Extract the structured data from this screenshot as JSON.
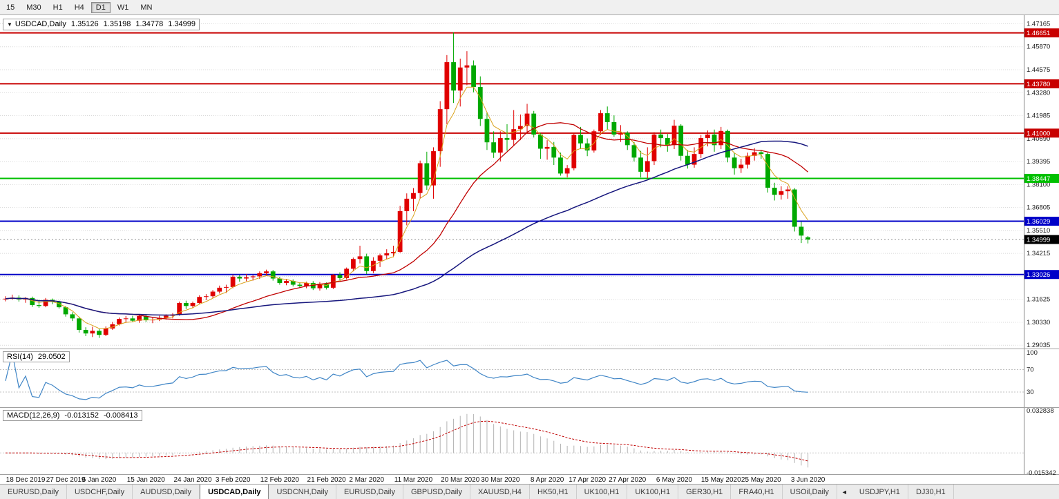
{
  "toolbar": {
    "periods": [
      {
        "label": "15",
        "active": false
      },
      {
        "label": "M30",
        "active": false
      },
      {
        "label": "H1",
        "active": false
      },
      {
        "label": "H4",
        "active": false
      },
      {
        "label": "D1",
        "active": true
      },
      {
        "label": "W1",
        "active": false
      },
      {
        "label": "MN",
        "active": false
      }
    ]
  },
  "chart_title": {
    "dropdown_icon": "▼",
    "symbol": "USDCAD,Daily",
    "open": "1.35126",
    "high": "1.35198",
    "low": "1.34778",
    "close": "1.34999"
  },
  "chart_data": {
    "type": "candlestick",
    "symbol": "USDCAD",
    "timeframe": "Daily",
    "up_color": "#e00000",
    "down_color": "#00a800",
    "price_axis": {
      "scale_top": 1.4765,
      "scale_bottom": 1.2885,
      "axis_values": [
        1.47165,
        1.4587,
        1.44575,
        1.4328,
        1.41985,
        1.4069,
        1.39395,
        1.381,
        1.36805,
        1.3551,
        1.34215,
        1.31625,
        1.3033,
        1.29035
      ],
      "grid_extra": [
        1.3292
      ]
    },
    "horizontal_lines": [
      {
        "value": 1.46651,
        "color": "#c80000",
        "width": 2
      },
      {
        "value": 1.4378,
        "color": "#c80000",
        "width": 2
      },
      {
        "value": 1.41,
        "color": "#c80000",
        "width": 2
      },
      {
        "value": 1.38447,
        "color": "#00c000",
        "width": 2
      },
      {
        "value": 1.36029,
        "color": "#0000c8",
        "width": 2
      },
      {
        "value": 1.33026,
        "color": "#0000c8",
        "width": 2
      }
    ],
    "current_price": 1.34999,
    "moving_averages": [
      {
        "type": "ema",
        "period": 5,
        "color": "#d9a018",
        "width": 1
      },
      {
        "type": "sma",
        "period": 20,
        "color": "#c00000",
        "width": 1.3
      },
      {
        "type": "sma",
        "period": 55,
        "color": "#16167d",
        "width": 1.5
      }
    ],
    "time_axis": [
      {
        "index": 3,
        "label": "18 Dec 2019"
      },
      {
        "index": 9,
        "label": "27 Dec 2019"
      },
      {
        "index": 14,
        "label": "6 Jan 2020"
      },
      {
        "index": 21,
        "label": "15 Jan 2020"
      },
      {
        "index": 28,
        "label": "24 Jan 2020"
      },
      {
        "index": 34,
        "label": "3 Feb 2020"
      },
      {
        "index": 41,
        "label": "12 Feb 2020"
      },
      {
        "index": 48,
        "label": "21 Feb 2020"
      },
      {
        "index": 54,
        "label": "2 Mar 2020"
      },
      {
        "index": 61,
        "label": "11 Mar 2020"
      },
      {
        "index": 68,
        "label": "20 Mar 2020"
      },
      {
        "index": 74,
        "label": "30 Mar 2020"
      },
      {
        "index": 81,
        "label": "8 Apr 2020"
      },
      {
        "index": 87,
        "label": "17 Apr 2020"
      },
      {
        "index": 93,
        "label": "27 Apr 2020"
      },
      {
        "index": 100,
        "label": "6 May 2020"
      },
      {
        "index": 107,
        "label": "15 May 2020"
      },
      {
        "index": 113,
        "label": "25 May 2020"
      },
      {
        "index": 120,
        "label": "3 Jun 2020"
      }
    ],
    "candles": [
      [
        1.3165,
        1.318,
        1.3151,
        1.3166
      ],
      [
        1.3166,
        1.3189,
        1.316,
        1.3172
      ],
      [
        1.3172,
        1.3185,
        1.315,
        1.3162
      ],
      [
        1.3162,
        1.3175,
        1.3143,
        1.317
      ],
      [
        1.317,
        1.3178,
        1.312,
        1.313
      ],
      [
        1.313,
        1.316,
        1.3115,
        1.3125
      ],
      [
        1.3125,
        1.317,
        1.3118,
        1.316
      ],
      [
        1.316,
        1.3167,
        1.3135,
        1.3148
      ],
      [
        1.3148,
        1.3155,
        1.311,
        1.3118
      ],
      [
        1.3118,
        1.3125,
        1.3065,
        1.3078
      ],
      [
        1.3078,
        1.309,
        1.304,
        1.3055
      ],
      [
        1.3055,
        1.3065,
        1.2975,
        1.299
      ],
      [
        1.299,
        1.3005,
        1.2955,
        1.297
      ],
      [
        1.297,
        1.3008,
        1.295,
        1.2985
      ],
      [
        1.2985,
        1.2995,
        1.2945,
        1.2962
      ],
      [
        1.2962,
        1.301,
        1.2955,
        1.2998
      ],
      [
        1.2998,
        1.3035,
        1.299,
        1.3022
      ],
      [
        1.3022,
        1.306,
        1.3015,
        1.3052
      ],
      [
        1.3052,
        1.3068,
        1.303,
        1.3055
      ],
      [
        1.3055,
        1.307,
        1.3035,
        1.3042
      ],
      [
        1.3042,
        1.3075,
        1.303,
        1.3068
      ],
      [
        1.3068,
        1.308,
        1.3035,
        1.3045
      ],
      [
        1.3045,
        1.3062,
        1.3028,
        1.3048
      ],
      [
        1.3048,
        1.307,
        1.304,
        1.3058
      ],
      [
        1.3058,
        1.3078,
        1.3048,
        1.307
      ],
      [
        1.307,
        1.3085,
        1.3055,
        1.3077
      ],
      [
        1.3077,
        1.315,
        1.307,
        1.3142
      ],
      [
        1.3142,
        1.3155,
        1.3108,
        1.3125
      ],
      [
        1.3125,
        1.315,
        1.3112,
        1.3142
      ],
      [
        1.3142,
        1.3185,
        1.3135,
        1.3176
      ],
      [
        1.3176,
        1.3192,
        1.3158,
        1.318
      ],
      [
        1.318,
        1.3215,
        1.317,
        1.3206
      ],
      [
        1.3206,
        1.324,
        1.3195,
        1.3228
      ],
      [
        1.3228,
        1.3245,
        1.3198,
        1.3232
      ],
      [
        1.3232,
        1.3302,
        1.3225,
        1.329
      ],
      [
        1.329,
        1.33,
        1.3262,
        1.328
      ],
      [
        1.328,
        1.3305,
        1.3265,
        1.3287
      ],
      [
        1.3287,
        1.33,
        1.3268,
        1.3292
      ],
      [
        1.3292,
        1.332,
        1.3278,
        1.331
      ],
      [
        1.331,
        1.333,
        1.3295,
        1.332
      ],
      [
        1.332,
        1.3328,
        1.3268,
        1.328
      ],
      [
        1.328,
        1.329,
        1.3245,
        1.3255
      ],
      [
        1.3255,
        1.3278,
        1.3242,
        1.3266
      ],
      [
        1.3266,
        1.3275,
        1.3235,
        1.3245
      ],
      [
        1.3245,
        1.3258,
        1.3228,
        1.3238
      ],
      [
        1.3238,
        1.3262,
        1.3225,
        1.3255
      ],
      [
        1.3255,
        1.3265,
        1.3215,
        1.3225
      ],
      [
        1.3225,
        1.326,
        1.3212,
        1.325
      ],
      [
        1.325,
        1.3258,
        1.3218,
        1.3228
      ],
      [
        1.3228,
        1.3305,
        1.322,
        1.33
      ],
      [
        1.33,
        1.3315,
        1.327,
        1.3282
      ],
      [
        1.3282,
        1.3342,
        1.3275,
        1.3335
      ],
      [
        1.3335,
        1.3398,
        1.332,
        1.339
      ],
      [
        1.339,
        1.3465,
        1.3365,
        1.3405
      ],
      [
        1.3405,
        1.342,
        1.3305,
        1.3322
      ],
      [
        1.3322,
        1.34,
        1.331,
        1.338
      ],
      [
        1.338,
        1.342,
        1.3345,
        1.341
      ],
      [
        1.341,
        1.3445,
        1.339,
        1.3422
      ],
      [
        1.3422,
        1.3465,
        1.34,
        1.343
      ],
      [
        1.343,
        1.369,
        1.3425,
        1.366
      ],
      [
        1.366,
        1.376,
        1.358,
        1.373
      ],
      [
        1.373,
        1.379,
        1.366,
        1.3762
      ],
      [
        1.3762,
        1.3945,
        1.373,
        1.393
      ],
      [
        1.393,
        1.3995,
        1.378,
        1.3805
      ],
      [
        1.3805,
        1.402,
        1.373,
        1.3998
      ],
      [
        1.3998,
        1.428,
        1.391,
        1.4235
      ],
      [
        1.4235,
        1.454,
        1.415,
        1.45
      ],
      [
        1.45,
        1.4668,
        1.427,
        1.434
      ],
      [
        1.434,
        1.452,
        1.425,
        1.447
      ],
      [
        1.447,
        1.4562,
        1.437,
        1.4482
      ],
      [
        1.4482,
        1.451,
        1.433,
        1.436
      ],
      [
        1.436,
        1.442,
        1.414,
        1.418
      ],
      [
        1.418,
        1.422,
        1.4005,
        1.4048
      ],
      [
        1.4048,
        1.411,
        1.396,
        1.399
      ],
      [
        1.399,
        1.411,
        1.394,
        1.4072
      ],
      [
        1.4072,
        1.415,
        1.4,
        1.4062
      ],
      [
        1.4062,
        1.423,
        1.403,
        1.4122
      ],
      [
        1.4122,
        1.4205,
        1.406,
        1.414
      ],
      [
        1.414,
        1.4265,
        1.4105,
        1.421
      ],
      [
        1.421,
        1.4225,
        1.4075,
        1.4092
      ],
      [
        1.4092,
        1.41,
        1.3955,
        1.4012
      ],
      [
        1.4012,
        1.406,
        1.395,
        1.4022
      ],
      [
        1.4022,
        1.405,
        1.392,
        1.3962
      ],
      [
        1.3962,
        1.399,
        1.386,
        1.3872
      ],
      [
        1.3872,
        1.392,
        1.385,
        1.3902
      ],
      [
        1.3902,
        1.41,
        1.389,
        1.409
      ],
      [
        1.409,
        1.4135,
        1.401,
        1.4042
      ],
      [
        1.4042,
        1.407,
        1.397,
        1.4002
      ],
      [
        1.4002,
        1.412,
        1.399,
        1.411
      ],
      [
        1.411,
        1.423,
        1.409,
        1.4212
      ],
      [
        1.4212,
        1.425,
        1.412,
        1.4162
      ],
      [
        1.4162,
        1.42,
        1.408,
        1.4092
      ],
      [
        1.4092,
        1.4145,
        1.405,
        1.4102
      ],
      [
        1.4102,
        1.411,
        1.4005,
        1.4032
      ],
      [
        1.4032,
        1.405,
        1.394,
        1.3962
      ],
      [
        1.3962,
        1.4,
        1.385,
        1.3882
      ],
      [
        1.3882,
        1.402,
        1.3845,
        1.3942
      ],
      [
        1.3942,
        1.4105,
        1.392,
        1.4092
      ],
      [
        1.4092,
        1.412,
        1.402,
        1.4072
      ],
      [
        1.4072,
        1.4095,
        1.3995,
        1.4032
      ],
      [
        1.4032,
        1.4175,
        1.401,
        1.4142
      ],
      [
        1.4142,
        1.415,
        1.3945,
        1.3972
      ],
      [
        1.3972,
        1.4005,
        1.39,
        1.3922
      ],
      [
        1.3922,
        1.402,
        1.3905,
        1.3982
      ],
      [
        1.3982,
        1.409,
        1.396,
        1.4072
      ],
      [
        1.4072,
        1.4115,
        1.4025,
        1.4092
      ],
      [
        1.4092,
        1.412,
        1.3995,
        1.4032
      ],
      [
        1.4032,
        1.4135,
        1.401,
        1.4112
      ],
      [
        1.4112,
        1.412,
        1.3935,
        1.3962
      ],
      [
        1.3962,
        1.399,
        1.3866,
        1.3902
      ],
      [
        1.3902,
        1.3955,
        1.3875,
        1.3922
      ],
      [
        1.3922,
        1.399,
        1.39,
        1.3972
      ],
      [
        1.3972,
        1.4015,
        1.3945,
        1.3992
      ],
      [
        1.3992,
        1.4005,
        1.3955,
        1.3982
      ],
      [
        1.3982,
        1.399,
        1.3765,
        1.3792
      ],
      [
        1.3792,
        1.382,
        1.372,
        1.3752
      ],
      [
        1.3752,
        1.38,
        1.3725,
        1.3772
      ],
      [
        1.3772,
        1.38,
        1.373,
        1.3782
      ],
      [
        1.3782,
        1.379,
        1.3545,
        1.3572
      ],
      [
        1.3572,
        1.36,
        1.348,
        1.3522
      ],
      [
        1.35126,
        1.35198,
        1.34778,
        1.34999
      ]
    ]
  },
  "rsi": {
    "label": "RSI(14)",
    "value": "29.0502",
    "period": 14,
    "line_color": "#3f85c6",
    "guide_color": "#c0c0c0",
    "axis_labels": [
      100,
      70,
      30
    ],
    "guide_levels": [
      70,
      30
    ]
  },
  "macd": {
    "label": "MACD(12,26,9)",
    "main_value": "-0.013152",
    "signal_value": "-0.008413",
    "fast": 12,
    "slow": 26,
    "signal": 9,
    "histogram_color": "#b4b4b4",
    "signal_color": "#c00000",
    "axis_labels": [
      0.032838,
      -0.015342
    ]
  },
  "tabs": [
    {
      "label": "EURUSD,Daily"
    },
    {
      "label": "USDCHF,Daily"
    },
    {
      "label": "AUDUSD,Daily"
    },
    {
      "label": "USDCAD,Daily",
      "active": true
    },
    {
      "label": "USDCNH,Daily"
    },
    {
      "label": "EURUSD,Daily"
    },
    {
      "label": "GBPUSD,Daily"
    },
    {
      "label": "XAUUSD,H4"
    },
    {
      "label": "HK50,H1"
    },
    {
      "label": "UK100,H1"
    },
    {
      "label": "UK100,H1"
    },
    {
      "label": "GER30,H1"
    },
    {
      "label": "FRA40,H1"
    },
    {
      "label": "USOil,Daily"
    },
    {
      "icon": "scroll-left",
      "glyph": "◄"
    },
    {
      "label": "USDJPY,H1"
    },
    {
      "label": "DJ30,H1"
    }
  ]
}
